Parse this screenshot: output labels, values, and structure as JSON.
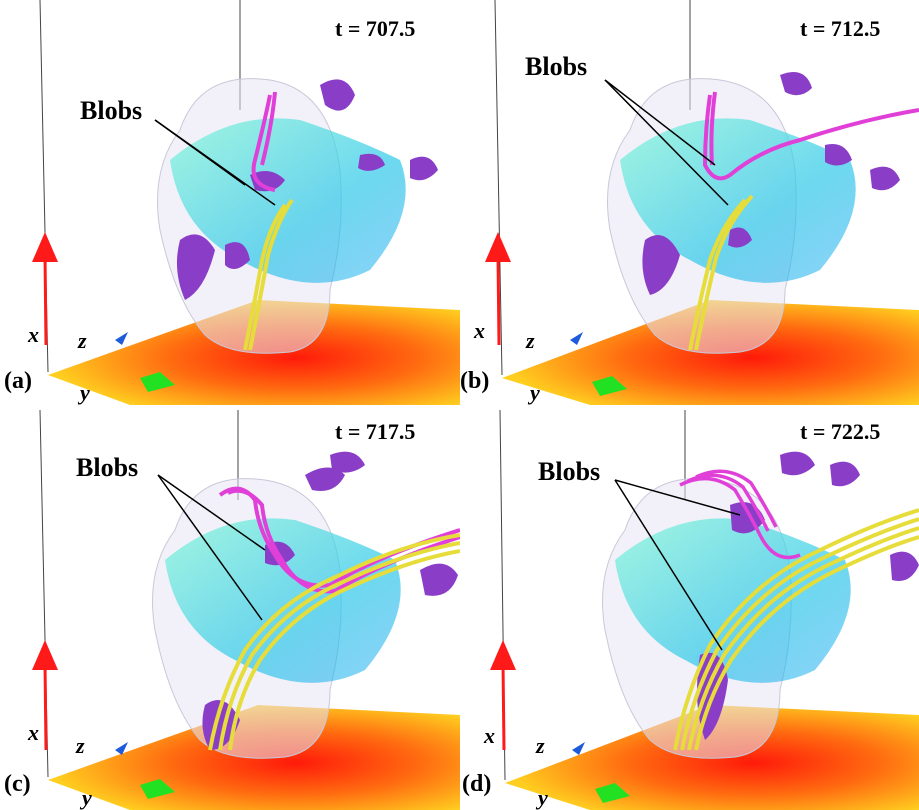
{
  "panels": [
    {
      "tag": "(a)",
      "time": "t = 707.5",
      "blobs_label": "Blobs",
      "x_label": "x",
      "y_label": "y",
      "z_label": "z"
    },
    {
      "tag": "(b)",
      "time": "t = 712.5",
      "blobs_label": "Blobs",
      "x_label": "x",
      "y_label": "y",
      "z_label": "z"
    },
    {
      "tag": "(c)",
      "time": "t = 717.5",
      "blobs_label": "Blobs",
      "x_label": "x",
      "y_label": "y",
      "z_label": "z"
    },
    {
      "tag": "(d)",
      "time": "t = 722.5",
      "blobs_label": "Blobs",
      "x_label": "x",
      "y_label": "y",
      "z_label": "z"
    }
  ],
  "colors": {
    "blob_isosurface": "#8a3ec8",
    "field_lines_magenta": "#e040d8",
    "field_lines_yellow": "#e6dc3a",
    "plasma_cyan": "#3ee6c8",
    "base_plane_center": "#ff2a10",
    "base_plane_edge": "#ffd21e",
    "x_arrow": "#ff1a1a",
    "y_arrow": "#22e022",
    "z_arrow": "#1e5adc"
  }
}
